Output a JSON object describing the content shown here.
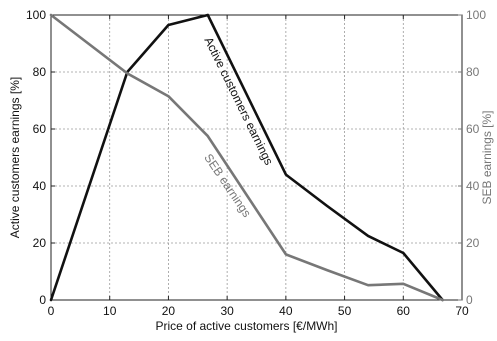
{
  "chart_data": {
    "type": "line",
    "xlabel": "Price of active customers [€/MWh]",
    "ylabel_left": "Active customers earnings [%]",
    "ylabel_right": "SEB earnings [%]",
    "xlim": [
      0,
      70
    ],
    "ylim_left": [
      0,
      100
    ],
    "ylim_right": [
      0,
      100
    ],
    "x_ticks": [
      "0",
      "10",
      "20",
      "30",
      "40",
      "50",
      "60",
      "70"
    ],
    "y_ticks_left": [
      "0",
      "20",
      "40",
      "60",
      "80",
      "100"
    ],
    "y_ticks_right": [
      "0",
      "20",
      "40",
      "60",
      "80",
      "100"
    ],
    "grid": true,
    "series": [
      {
        "name": "Active customers earnings",
        "color": "#111111",
        "x": [
          0,
          13,
          20,
          26.7,
          40,
          47,
          54,
          60,
          66.7
        ],
        "y": [
          0,
          80,
          96.5,
          100,
          44,
          33,
          22.5,
          16.5,
          0
        ]
      },
      {
        "name": "SEB earnings",
        "color": "#777777",
        "x": [
          0,
          13,
          20,
          26.7,
          40,
          47,
          54,
          60,
          66.7
        ],
        "y": [
          100,
          79.5,
          71.5,
          57.5,
          16,
          10.5,
          5.2,
          5.7,
          0
        ]
      }
    ],
    "annotations": [
      {
        "text": "Active customers earnings",
        "series": 0
      },
      {
        "text": "SEB earnings",
        "series": 1
      }
    ]
  }
}
